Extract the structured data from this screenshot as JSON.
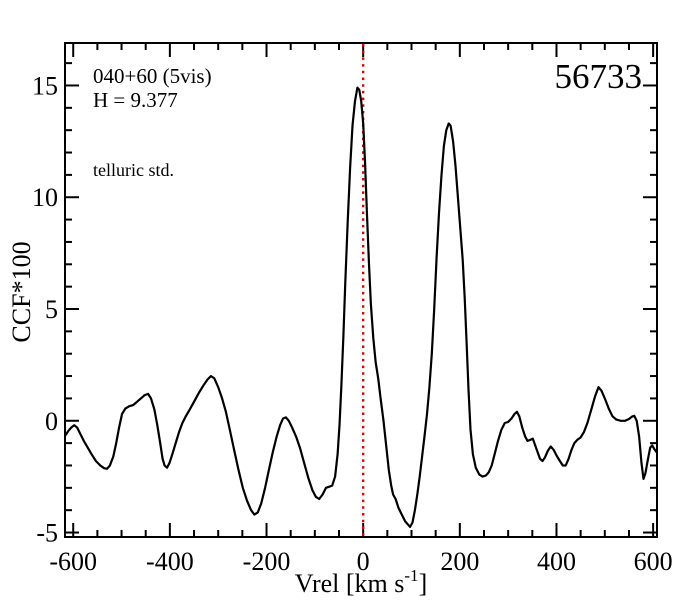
{
  "figure": {
    "annotations": {
      "field": "040+60 (5vis)",
      "hmag": "H = 9.377",
      "telluric": "telluric std.",
      "obsid": "56733"
    },
    "colors": {
      "curve": "#000000",
      "refline": "#dd0000",
      "telluric": "#560089",
      "background": "#ffffff"
    }
  },
  "chart_data": {
    "type": "line",
    "title": "",
    "xlabel": {
      "pre": "Vrel [km s",
      "sup": "-1",
      "post": "]"
    },
    "ylabel": "CCF*100",
    "xlim": [
      -617,
      608
    ],
    "ylim": [
      -5.2,
      16.9
    ],
    "x_major_ticks": [
      -600,
      -400,
      -200,
      0,
      200,
      400,
      600
    ],
    "x_minor_step": 50,
    "y_major_ticks": [
      -5,
      0,
      5,
      10,
      15
    ],
    "y_minor_step": 1,
    "grid": false,
    "legend": false,
    "ref_line_x": 0,
    "series": [
      {
        "name": "CCF",
        "points": [
          [
            -616,
            -0.65
          ],
          [
            -610,
            -0.45
          ],
          [
            -604,
            -0.3
          ],
          [
            -598,
            -0.2
          ],
          [
            -592,
            -0.3
          ],
          [
            -585,
            -0.6
          ],
          [
            -578,
            -0.9
          ],
          [
            -570,
            -1.2
          ],
          [
            -562,
            -1.5
          ],
          [
            -553,
            -1.8
          ],
          [
            -544,
            -2.0
          ],
          [
            -536,
            -2.12
          ],
          [
            -530,
            -2.15
          ],
          [
            -524,
            -2.0
          ],
          [
            -517,
            -1.6
          ],
          [
            -511,
            -1.0
          ],
          [
            -505,
            -0.3
          ],
          [
            -499,
            0.3
          ],
          [
            -492,
            0.55
          ],
          [
            -484,
            0.65
          ],
          [
            -476,
            0.7
          ],
          [
            -468,
            0.85
          ],
          [
            -460,
            1.0
          ],
          [
            -452,
            1.15
          ],
          [
            -445,
            1.2
          ],
          [
            -439,
            1.0
          ],
          [
            -432,
            0.5
          ],
          [
            -426,
            -0.2
          ],
          [
            -420,
            -1.0
          ],
          [
            -415,
            -1.7
          ],
          [
            -411,
            -2.0
          ],
          [
            -406,
            -2.1
          ],
          [
            -401,
            -1.9
          ],
          [
            -395,
            -1.5
          ],
          [
            -388,
            -1.0
          ],
          [
            -381,
            -0.5
          ],
          [
            -374,
            -0.1
          ],
          [
            -367,
            0.2
          ],
          [
            -359,
            0.5
          ],
          [
            -350,
            0.85
          ],
          [
            -340,
            1.25
          ],
          [
            -330,
            1.6
          ],
          [
            -322,
            1.85
          ],
          [
            -315,
            2.0
          ],
          [
            -308,
            1.9
          ],
          [
            -300,
            1.5
          ],
          [
            -292,
            1.0
          ],
          [
            -284,
            0.4
          ],
          [
            -276,
            -0.4
          ],
          [
            -267,
            -1.3
          ],
          [
            -258,
            -2.2
          ],
          [
            -249,
            -3.0
          ],
          [
            -240,
            -3.6
          ],
          [
            -232,
            -4.0
          ],
          [
            -225,
            -4.2
          ],
          [
            -218,
            -4.1
          ],
          [
            -211,
            -3.7
          ],
          [
            -203,
            -3.0
          ],
          [
            -195,
            -2.2
          ],
          [
            -187,
            -1.4
          ],
          [
            -179,
            -0.7
          ],
          [
            -172,
            -0.2
          ],
          [
            -166,
            0.1
          ],
          [
            -160,
            0.15
          ],
          [
            -154,
            0.0
          ],
          [
            -147,
            -0.3
          ],
          [
            -139,
            -0.7
          ],
          [
            -131,
            -1.2
          ],
          [
            -122,
            -1.9
          ],
          [
            -113,
            -2.6
          ],
          [
            -105,
            -3.1
          ],
          [
            -98,
            -3.4
          ],
          [
            -91,
            -3.5
          ],
          [
            -84,
            -3.3
          ],
          [
            -77,
            -3.0
          ],
          [
            -70,
            -2.95
          ],
          [
            -64,
            -2.9
          ],
          [
            -58,
            -2.5
          ],
          [
            -53,
            -1.5
          ],
          [
            -49,
            -0.2
          ],
          [
            -45,
            1.6
          ],
          [
            -41,
            3.8
          ],
          [
            -37,
            6.2
          ],
          [
            -32,
            8.9
          ],
          [
            -27,
            11.3
          ],
          [
            -22,
            13.2
          ],
          [
            -17,
            14.3
          ],
          [
            -12,
            14.9
          ],
          [
            -8,
            14.8
          ],
          [
            -4,
            14.3
          ],
          [
            0,
            13.3
          ],
          [
            4,
            11.5
          ],
          [
            8,
            9.2
          ],
          [
            12,
            7.0
          ],
          [
            16,
            5.2
          ],
          [
            21,
            3.7
          ],
          [
            26,
            2.6
          ],
          [
            31,
            1.9
          ],
          [
            36,
            1.0
          ],
          [
            42,
            0.0
          ],
          [
            48,
            -1.2
          ],
          [
            53,
            -2.2
          ],
          [
            58,
            -2.9
          ],
          [
            62,
            -3.3
          ],
          [
            67,
            -3.5
          ],
          [
            73,
            -3.9
          ],
          [
            80,
            -4.2
          ],
          [
            87,
            -4.5
          ],
          [
            93,
            -4.65
          ],
          [
            97,
            -4.75
          ],
          [
            102,
            -4.55
          ],
          [
            107,
            -4.0
          ],
          [
            112,
            -3.3
          ],
          [
            117,
            -2.5
          ],
          [
            122,
            -1.6
          ],
          [
            127,
            -0.7
          ],
          [
            132,
            0.3
          ],
          [
            137,
            1.5
          ],
          [
            142,
            3.0
          ],
          [
            147,
            5.0
          ],
          [
            152,
            7.3
          ],
          [
            157,
            9.3
          ],
          [
            162,
            11.0
          ],
          [
            167,
            12.3
          ],
          [
            172,
            13.0
          ],
          [
            177,
            13.3
          ],
          [
            181,
            13.2
          ],
          [
            186,
            12.5
          ],
          [
            191,
            11.4
          ],
          [
            196,
            10.0
          ],
          [
            201,
            8.6
          ],
          [
            206,
            7.2
          ],
          [
            210,
            5.5
          ],
          [
            214,
            3.5
          ],
          [
            218,
            1.4
          ],
          [
            222,
            -0.4
          ],
          [
            227,
            -1.5
          ],
          [
            233,
            -2.1
          ],
          [
            240,
            -2.4
          ],
          [
            247,
            -2.5
          ],
          [
            254,
            -2.45
          ],
          [
            260,
            -2.3
          ],
          [
            266,
            -2.0
          ],
          [
            272,
            -1.5
          ],
          [
            279,
            -0.9
          ],
          [
            286,
            -0.4
          ],
          [
            293,
            -0.1
          ],
          [
            300,
            -0.05
          ],
          [
            307,
            0.1
          ],
          [
            313,
            0.3
          ],
          [
            318,
            0.4
          ],
          [
            323,
            0.2
          ],
          [
            329,
            -0.3
          ],
          [
            335,
            -0.7
          ],
          [
            340,
            -0.9
          ],
          [
            346,
            -0.85
          ],
          [
            351,
            -0.8
          ],
          [
            356,
            -1.1
          ],
          [
            361,
            -1.4
          ],
          [
            366,
            -1.7
          ],
          [
            371,
            -1.8
          ],
          [
            376,
            -1.65
          ],
          [
            382,
            -1.35
          ],
          [
            388,
            -1.15
          ],
          [
            394,
            -1.3
          ],
          [
            400,
            -1.55
          ],
          [
            407,
            -1.8
          ],
          [
            413,
            -2.0
          ],
          [
            419,
            -2.0
          ],
          [
            425,
            -1.7
          ],
          [
            431,
            -1.3
          ],
          [
            437,
            -1.0
          ],
          [
            443,
            -0.85
          ],
          [
            450,
            -0.75
          ],
          [
            457,
            -0.5
          ],
          [
            464,
            -0.1
          ],
          [
            472,
            0.5
          ],
          [
            480,
            1.1
          ],
          [
            487,
            1.5
          ],
          [
            493,
            1.35
          ],
          [
            500,
            1.0
          ],
          [
            508,
            0.55
          ],
          [
            516,
            0.2
          ],
          [
            524,
            0.05
          ],
          [
            533,
            0.0
          ],
          [
            542,
            0.0
          ],
          [
            550,
            0.08
          ],
          [
            556,
            0.18
          ],
          [
            561,
            0.22
          ],
          [
            566,
            0.0
          ],
          [
            571,
            -0.7
          ],
          [
            576,
            -1.9
          ],
          [
            580,
            -2.6
          ],
          [
            584,
            -2.35
          ],
          [
            589,
            -1.75
          ],
          [
            594,
            -1.2
          ],
          [
            598,
            -1.1
          ],
          [
            602,
            -1.25
          ],
          [
            607,
            -1.4
          ]
        ]
      }
    ]
  }
}
